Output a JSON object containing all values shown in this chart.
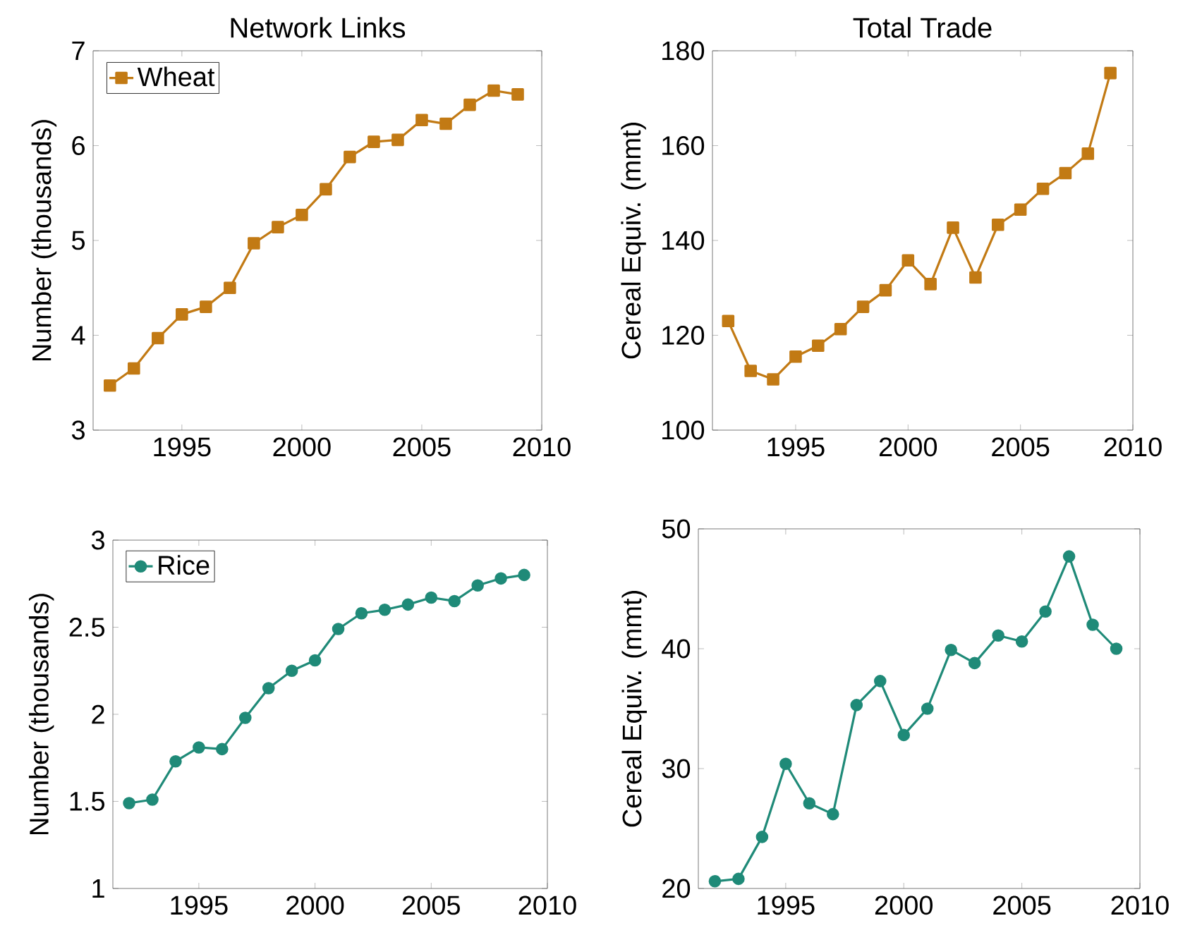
{
  "chart_data": [
    {
      "type": "line",
      "title": "Network Links",
      "ylabel": "Number (thousands)",
      "x": [
        1992,
        1993,
        1994,
        1995,
        1996,
        1997,
        1998,
        1999,
        2000,
        2001,
        2002,
        2003,
        2004,
        2005,
        2006,
        2007,
        2008,
        2009
      ],
      "series": [
        {
          "name": "Wheat",
          "color": "#c27a14",
          "values": [
            3.47,
            3.65,
            3.97,
            4.22,
            4.3,
            4.5,
            4.97,
            5.14,
            5.27,
            5.54,
            5.88,
            6.04,
            6.06,
            6.27,
            6.23,
            6.43,
            6.58,
            6.54
          ]
        }
      ],
      "xlim": [
        1991.3,
        2010
      ],
      "xticks": [
        1995,
        2000,
        2005,
        2010
      ],
      "ylim": [
        3,
        7
      ],
      "yticks": [
        3,
        4,
        5,
        6,
        7
      ],
      "marker": "square",
      "legend": "top left",
      "grid": false
    },
    {
      "type": "line",
      "title": "Total Trade",
      "ylabel": "Cereal Equiv. (mmt)",
      "x": [
        1992,
        1993,
        1994,
        1995,
        1996,
        1997,
        1998,
        1999,
        2000,
        2001,
        2002,
        2003,
        2004,
        2005,
        2006,
        2007,
        2008,
        2009
      ],
      "series": [
        {
          "color": "#c27a14",
          "values": [
            123,
            112.5,
            110.7,
            115.5,
            117.8,
            121.3,
            126,
            129.5,
            135.8,
            130.8,
            142.7,
            132.2,
            143.3,
            146.5,
            150.9,
            154.2,
            158.3,
            175.3
          ]
        }
      ],
      "xlim": [
        1991.3,
        2010
      ],
      "xticks": [
        1995,
        2000,
        2005,
        2010
      ],
      "ylim": [
        100,
        180
      ],
      "yticks": [
        100,
        120,
        140,
        160,
        180
      ],
      "marker": "square",
      "grid": false
    },
    {
      "type": "line",
      "ylabel": "Number (thousands)",
      "x": [
        1992,
        1993,
        1994,
        1995,
        1996,
        1997,
        1998,
        1999,
        2000,
        2001,
        2002,
        2003,
        2004,
        2005,
        2006,
        2007,
        2008,
        2009
      ],
      "series": [
        {
          "name": "Rice",
          "color": "#1f8a78",
          "values": [
            1.49,
            1.51,
            1.73,
            1.81,
            1.8,
            1.98,
            2.15,
            2.25,
            2.31,
            2.49,
            2.58,
            2.6,
            2.63,
            2.67,
            2.65,
            2.74,
            2.78,
            2.8
          ]
        }
      ],
      "xlim": [
        1991.3,
        2010
      ],
      "xticks": [
        1995,
        2000,
        2005,
        2010
      ],
      "ylim": [
        1,
        3
      ],
      "yticks": [
        1,
        1.5,
        2,
        2.5,
        3
      ],
      "marker": "circle",
      "legend": "top left",
      "grid": false
    },
    {
      "type": "line",
      "ylabel": "Cereal Equiv. (mmt)",
      "x": [
        1992,
        1993,
        1994,
        1995,
        1996,
        1997,
        1998,
        1999,
        2000,
        2001,
        2002,
        2003,
        2004,
        2005,
        2006,
        2007,
        2008,
        2009
      ],
      "series": [
        {
          "color": "#1f8a78",
          "values": [
            20.6,
            20.8,
            24.3,
            30.4,
            27.1,
            26.2,
            35.3,
            37.3,
            32.8,
            35.0,
            39.9,
            38.8,
            41.1,
            40.6,
            43.1,
            47.7,
            42.0,
            40.0
          ]
        }
      ],
      "xlim": [
        1991.3,
        2010
      ],
      "xticks": [
        1995,
        2000,
        2005,
        2010
      ],
      "ylim": [
        20,
        50
      ],
      "yticks": [
        20,
        30,
        40,
        50
      ],
      "marker": "circle",
      "grid": false
    }
  ]
}
